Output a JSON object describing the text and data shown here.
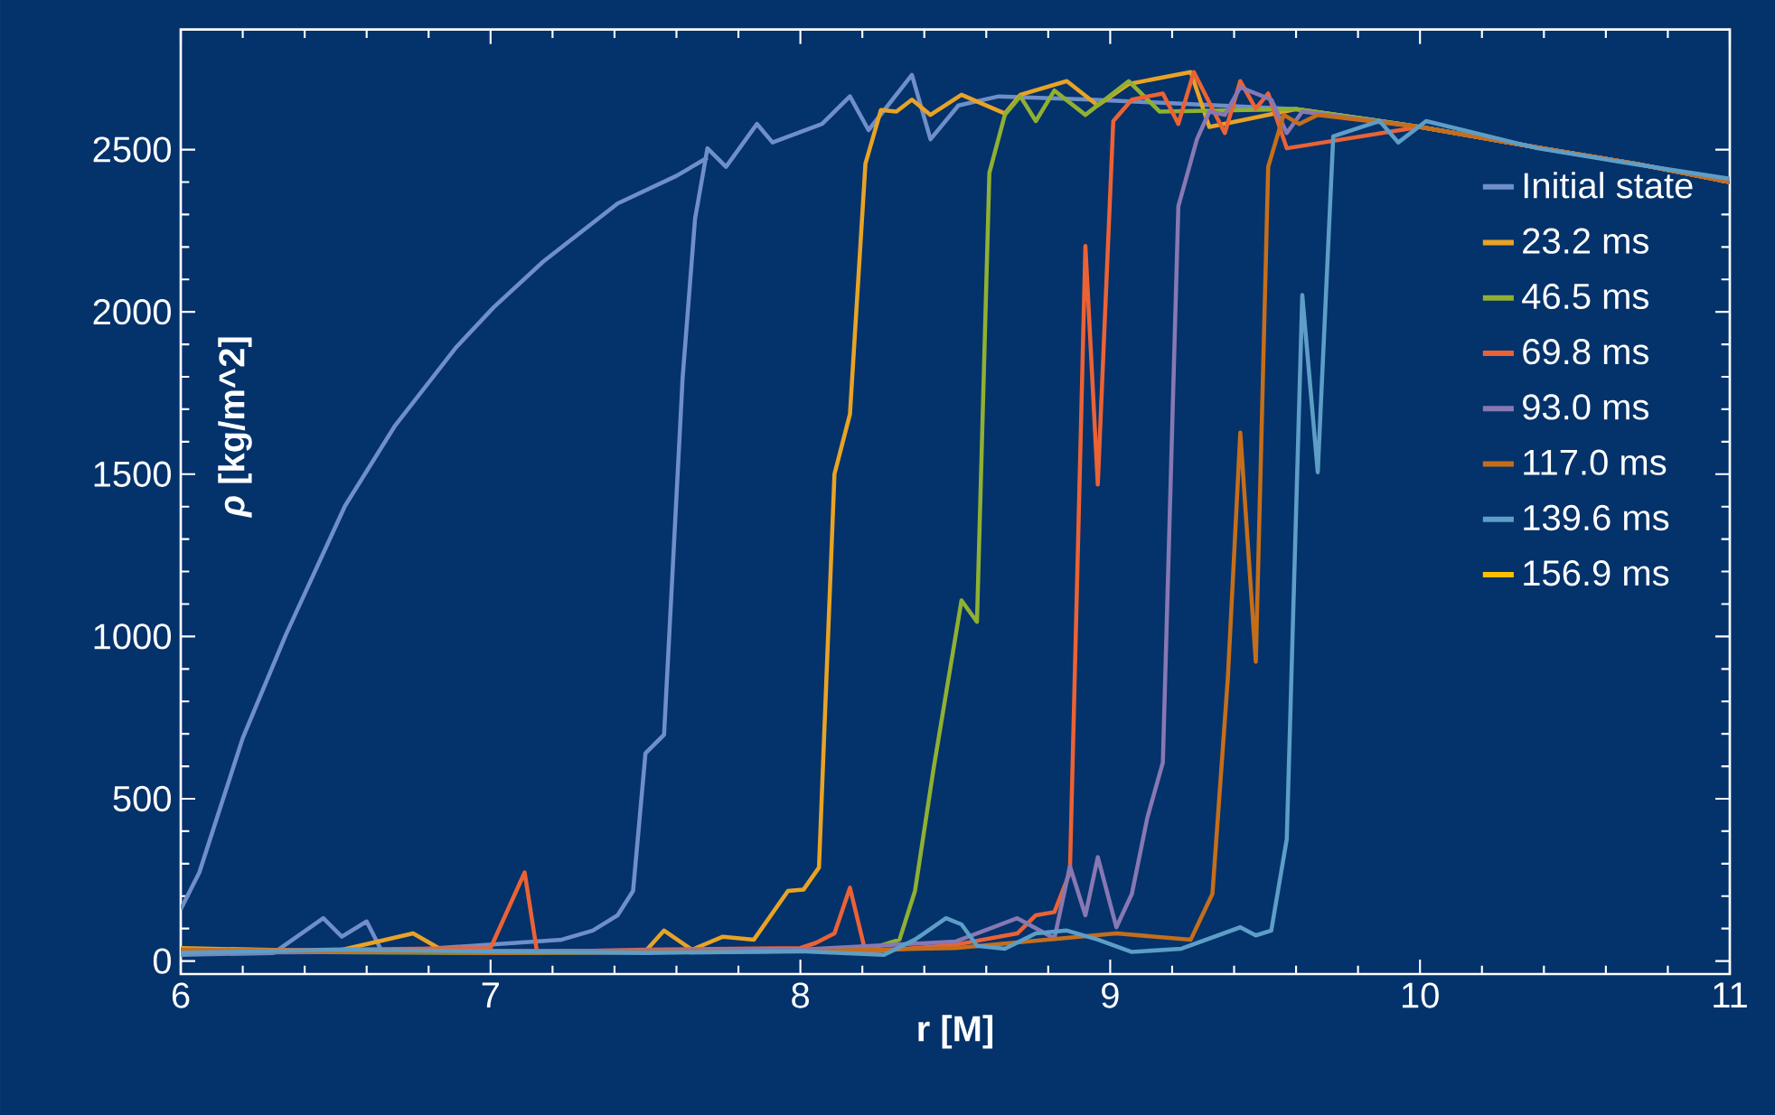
{
  "chart_data": {
    "type": "line",
    "xlabel": "r [M]",
    "ylabel": "*ρ* [kg/m^2]",
    "xlim": [
      6,
      11
    ],
    "ylim": [
      -40,
      2870
    ],
    "xticks": [
      6,
      7,
      8,
      9,
      10,
      11
    ],
    "yticks": [
      0,
      500,
      1000,
      1500,
      2000,
      2500
    ],
    "legend": "right",
    "series": [
      {
        "name": "Initial state",
        "color": "#6f8fc9",
        "x": [
          6.0,
          6.3,
          6.46,
          6.52,
          6.6,
          6.65,
          7.23,
          7.33,
          7.41,
          7.46,
          7.5,
          7.56,
          7.62,
          7.66,
          7.7,
          7.76,
          7.86,
          7.91,
          8.07,
          8.16,
          8.22,
          8.36,
          8.42,
          8.51,
          8.64,
          8.94,
          9.6,
          10.0,
          10.4,
          10.7,
          11.0
        ],
        "values": [
          19,
          25,
          132,
          75,
          122,
          28,
          66,
          94,
          141,
          216,
          640,
          697,
          1798,
          2287,
          2504,
          2447,
          2579,
          2522,
          2579,
          2664,
          2560,
          2730,
          2532,
          2636,
          2664,
          2654,
          2625,
          2570,
          2503,
          2456,
          2400
        ]
      },
      {
        "color": "#6f8fc9",
        "x": [
          6.0,
          6.06,
          6.2,
          6.34,
          6.53,
          6.69,
          6.89,
          7.01,
          7.17,
          7.41,
          7.6,
          7.7
        ],
        "values": [
          160,
          273,
          687,
          1007,
          1402,
          1647,
          1892,
          2014,
          2155,
          2334,
          2419,
          2475
        ]
      },
      {
        "name": "23.2 ms",
        "color": "#e8a325",
        "x": [
          6.0,
          6.5,
          6.75,
          6.85,
          7.5,
          7.56,
          7.65,
          7.75,
          7.85,
          7.96,
          8.01,
          8.06,
          8.11,
          8.16,
          8.21,
          8.26,
          8.31,
          8.36,
          8.42,
          8.52,
          8.66,
          8.71,
          8.86,
          8.96,
          9.06,
          9.26,
          9.32,
          9.6,
          10.0,
          10.4,
          10.7,
          11.0
        ],
        "values": [
          40,
          30,
          85,
          30,
          30,
          94,
          35,
          75,
          66,
          216,
          220,
          288,
          1500,
          1685,
          2457,
          2622,
          2617,
          2654,
          2607,
          2669,
          2611,
          2669,
          2711,
          2636,
          2702,
          2739,
          2570,
          2625,
          2570,
          2503,
          2456,
          2400
        ]
      },
      {
        "name": "46.5 ms",
        "color": "#8fb032",
        "x": [
          6.0,
          7.0,
          8.0,
          8.2,
          8.32,
          8.37,
          8.43,
          8.52,
          8.57,
          8.61,
          8.66,
          8.71,
          8.76,
          8.82,
          8.92,
          9.06,
          9.16,
          9.6,
          10.0,
          10.4,
          10.7,
          11.0
        ],
        "values": [
          30,
          25,
          30,
          30,
          66,
          216,
          593,
          1111,
          1045,
          2428,
          2607,
          2664,
          2588,
          2682,
          2607,
          2711,
          2617,
          2625,
          2570,
          2503,
          2456,
          2400
        ]
      },
      {
        "name": "69.8 ms",
        "color": "#eb6235",
        "x": [
          6.0,
          7.0,
          7.11,
          7.15,
          7.5,
          8.0,
          8.05,
          8.11,
          8.16,
          8.21,
          8.5,
          8.7,
          8.76,
          8.82,
          8.87,
          8.92,
          8.96,
          9.01,
          9.07,
          9.17,
          9.22,
          9.27,
          9.37,
          9.42,
          9.47,
          9.51,
          9.57,
          10.0,
          10.4,
          10.7,
          11.0
        ],
        "values": [
          30,
          40,
          273,
          28,
          35,
          40,
          56,
          85,
          226,
          28,
          50,
          85,
          141,
          151,
          273,
          2203,
          1468,
          2588,
          2654,
          2673,
          2579,
          2739,
          2551,
          2711,
          2626,
          2673,
          2504,
          2570,
          2503,
          2456,
          2400
        ]
      },
      {
        "name": "93.0 ms",
        "color": "#8778b3",
        "x": [
          6.0,
          7.0,
          8.0,
          8.5,
          8.7,
          8.82,
          8.87,
          8.92,
          8.96,
          9.02,
          9.07,
          9.12,
          9.17,
          9.22,
          9.28,
          9.32,
          9.37,
          9.42,
          9.52,
          9.57,
          9.62,
          10.0,
          10.4,
          10.7,
          11.0
        ],
        "values": [
          25,
          30,
          35,
          60,
          132,
          70,
          292,
          141,
          320,
          104,
          207,
          442,
          612,
          2325,
          2532,
          2617,
          2607,
          2692,
          2654,
          2551,
          2617,
          2570,
          2503,
          2456,
          2400
        ]
      },
      {
        "name": "117.0 ms",
        "color": "#c56e1a",
        "x": [
          6.0,
          7.0,
          8.0,
          8.5,
          9.02,
          9.26,
          9.33,
          9.38,
          9.42,
          9.47,
          9.51,
          9.56,
          9.61,
          9.67,
          10.0,
          10.4,
          10.7,
          11.0
        ],
        "values": [
          35,
          25,
          30,
          40,
          85,
          66,
          207,
          875,
          1628,
          922,
          2447,
          2607,
          2579,
          2607,
          2570,
          2503,
          2456,
          2400
        ]
      },
      {
        "name": "139.6 ms",
        "color": "#5d9ec7",
        "x": [
          6.0,
          6.5,
          7.0,
          7.5,
          8.0,
          8.27,
          8.37,
          8.47,
          8.52,
          8.57,
          8.66,
          8.76,
          8.86,
          8.96,
          9.07,
          9.23,
          9.42,
          9.47,
          9.52,
          9.57,
          9.62,
          9.67,
          9.72,
          9.87,
          9.93,
          10.02,
          10.38,
          10.68,
          11.0
        ],
        "values": [
          25,
          35,
          30,
          25,
          30,
          19,
          66,
          132,
          113,
          47,
          38,
          85,
          94,
          66,
          28,
          38,
          104,
          79,
          94,
          376,
          2052,
          1506,
          2541,
          2588,
          2522,
          2588,
          2504,
          2457,
          2410
        ]
      },
      {
        "name": "156.9 ms",
        "color": "#ffbf00"
      }
    ]
  }
}
